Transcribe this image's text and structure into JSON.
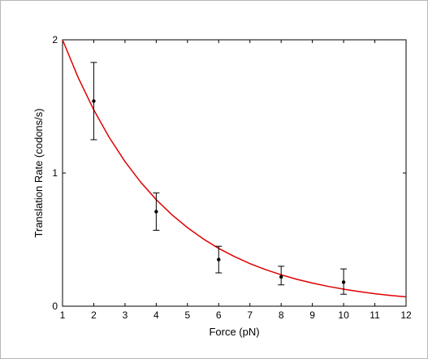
{
  "chart_data": {
    "type": "scatter",
    "xlabel": "Force (pN)",
    "ylabel": "Translation Rate (codons/s)",
    "xlim": [
      1,
      12
    ],
    "ylim": [
      0,
      2
    ],
    "xticks": [
      "1",
      "2",
      "3",
      "4",
      "5",
      "6",
      "7",
      "8",
      "9",
      "10",
      "11",
      "12"
    ],
    "yticks": [
      "0",
      "1",
      "2"
    ],
    "grid": false,
    "series": [
      {
        "kind": "points-with-errorbars",
        "color": "#000000",
        "x": [
          2,
          4,
          6,
          8,
          10
        ],
        "y": [
          1.54,
          0.71,
          0.35,
          0.22,
          0.18
        ],
        "err_low": [
          0.29,
          0.14,
          0.1,
          0.06,
          0.09
        ],
        "err_high": [
          0.29,
          0.14,
          0.1,
          0.08,
          0.1
        ]
      },
      {
        "kind": "fit-curve",
        "color": "#e00000",
        "x": [
          1,
          1.5,
          2,
          2.5,
          3,
          3.5,
          4,
          4.5,
          5,
          5.5,
          6,
          6.5,
          7,
          7.5,
          8,
          8.5,
          9,
          9.5,
          10,
          10.5,
          11,
          11.5,
          12
        ],
        "y": [
          2.0,
          1.717,
          1.474,
          1.265,
          1.086,
          0.932,
          0.8,
          0.687,
          0.59,
          0.506,
          0.434,
          0.373,
          0.32,
          0.275,
          0.236,
          0.202,
          0.174,
          0.149,
          0.128,
          0.11,
          0.094,
          0.081,
          0.07
        ]
      }
    ]
  }
}
